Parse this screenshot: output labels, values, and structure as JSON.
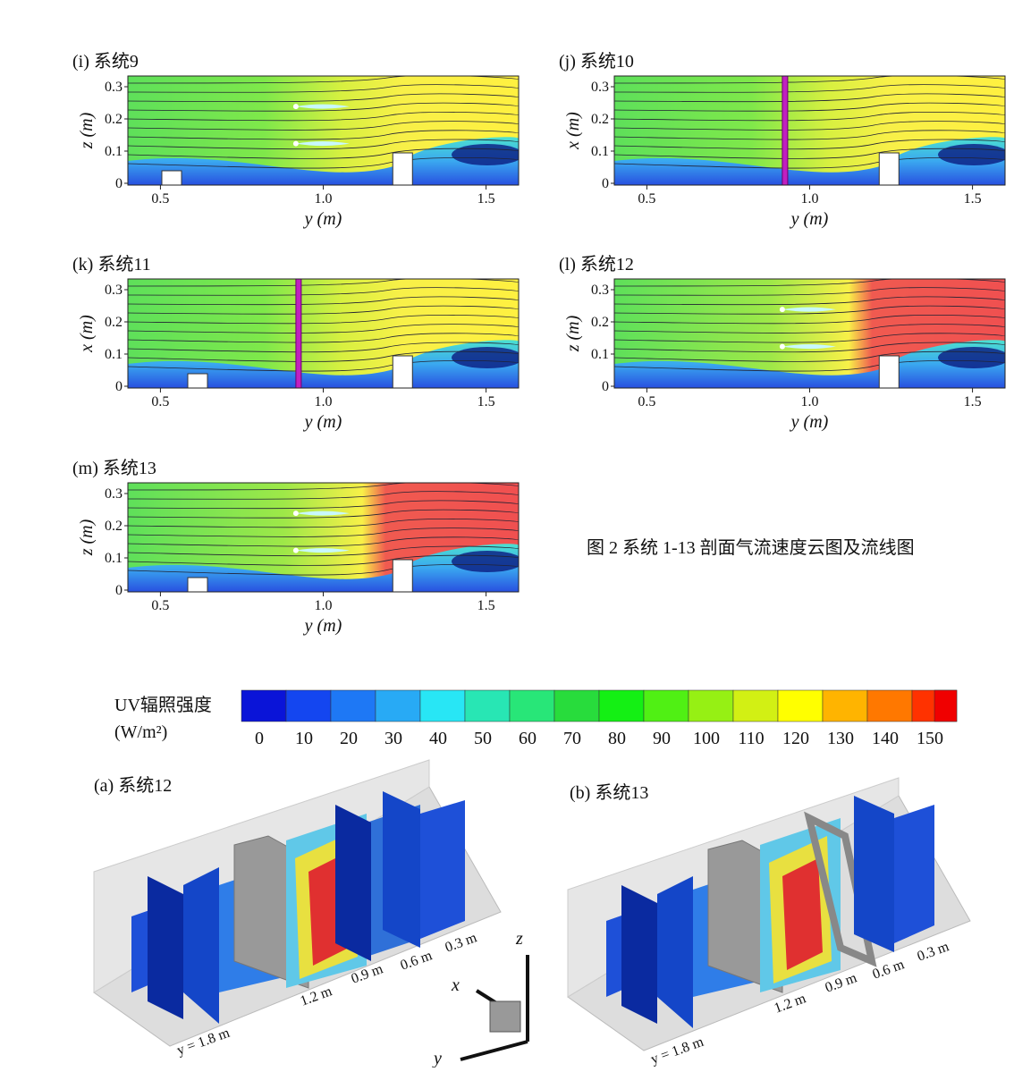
{
  "panels": [
    {
      "label": "(i) 系统9",
      "ylabel": "z (m)",
      "yticks": [
        "0",
        "0.1",
        "0.2",
        "0.3"
      ],
      "xticks": [
        "0.5",
        "1.0",
        "1.5"
      ],
      "xlabel": "y (m)"
    },
    {
      "label": "(j) 系统10",
      "ylabel": "x (m)",
      "yticks": [
        "0",
        "0.1",
        "0.2",
        "0.3"
      ],
      "xticks": [
        "0.5",
        "1.0",
        "1.5"
      ],
      "xlabel": "y (m)"
    },
    {
      "label": "(k) 系统11",
      "ylabel": "x (m)",
      "yticks": [
        "0",
        "0.1",
        "0.2",
        "0.3"
      ],
      "xticks": [
        "0.5",
        "1.0",
        "1.5"
      ],
      "xlabel": "y (m)"
    },
    {
      "label": "(l) 系统12",
      "ylabel": "z (m)",
      "yticks": [
        "0",
        "0.1",
        "0.2",
        "0.3"
      ],
      "xticks": [
        "0.5",
        "1.0",
        "1.5"
      ],
      "xlabel": "y (m)"
    },
    {
      "label": "(m) 系统13",
      "ylabel": "z (m)",
      "yticks": [
        "0",
        "0.1",
        "0.2",
        "0.3"
      ],
      "xticks": [
        "0.5",
        "1.0",
        "1.5"
      ],
      "xlabel": "y (m)"
    }
  ],
  "caption": "图 2 系统 1-13 剖面气流速度云图及流线图",
  "colorbar": {
    "title": "UV辐照强度",
    "unit": "(W/m²)",
    "ticks": [
      "0",
      "10",
      "20",
      "30",
      "40",
      "50",
      "60",
      "70",
      "80",
      "90",
      "100",
      "110",
      "120",
      "130",
      "140",
      "150"
    ],
    "colors": [
      "#0a14d8",
      "#1446f0",
      "#1e78f5",
      "#28aaf5",
      "#28e6f5",
      "#28e6b4",
      "#28e678",
      "#28dc3c",
      "#14f014",
      "#50f014",
      "#96f014",
      "#d2f014",
      "#ffff00",
      "#ffb400",
      "#ff7800",
      "#ff3200",
      "#f00000"
    ]
  },
  "views": [
    {
      "label": "(a) 系统12",
      "dims": [
        "y = 1.8 m",
        "1.2 m",
        "0.9 m",
        "0.6 m",
        "0.3 m"
      ]
    },
    {
      "label": "(b) 系统13",
      "dims": [
        "y = 1.8 m",
        "1.2 m",
        "0.9 m",
        "0.6 m",
        "0.3 m"
      ]
    }
  ],
  "axes": [
    "z",
    "x",
    "y"
  ]
}
